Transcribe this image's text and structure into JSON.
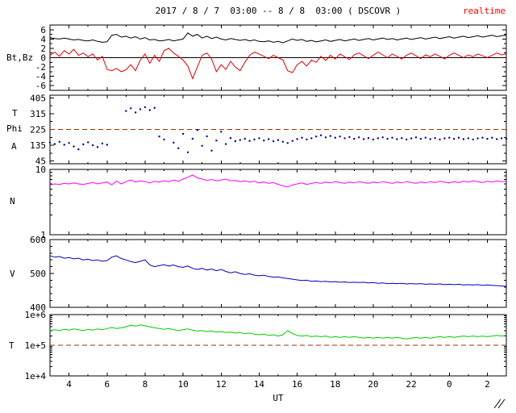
{
  "chart_data": {
    "type": "line",
    "title": "2017 / 8 / 7  03:00 -- 8 / 8  03:00 ( DSCOVR )",
    "annotations": {
      "realtime_label": "realtime",
      "realtime_color": "#ff0000"
    },
    "x_start": 3,
    "x_step": 0.25,
    "x_axis": {
      "label": "UT",
      "start_hour": 3,
      "end_hour": 27,
      "major_ticks": [
        4,
        6,
        8,
        10,
        12,
        14,
        16,
        18,
        20,
        22,
        24,
        26
      ],
      "major_tick_labels": [
        "4",
        "6",
        "8",
        "10",
        "12",
        "14",
        "16",
        "18",
        "20",
        "22",
        "0",
        "2"
      ],
      "minor_ticks": [
        5,
        7,
        9,
        11,
        13,
        15,
        17,
        19,
        21,
        23,
        25
      ]
    },
    "panels": [
      {
        "name": "bt-bz",
        "label": "Bt,Bz",
        "scale": "linear",
        "ylim": [
          -7,
          7
        ],
        "yticks": [
          {
            "v": 6,
            "label": "6"
          },
          {
            "v": 4,
            "label": "4"
          },
          {
            "v": 2,
            "label": "2"
          },
          {
            "v": 0,
            "label": "0"
          },
          {
            "v": -2,
            "label": "-2"
          },
          {
            "v": -4,
            "label": "-4"
          },
          {
            "v": -6,
            "label": "-6"
          }
        ],
        "yminor": [
          5,
          3,
          1,
          -1,
          -3,
          -5
        ],
        "zero_line": 0,
        "series": [
          {
            "name": "Bt",
            "color": "#000000",
            "style": "line",
            "values": [
              4.3,
              4.1,
              4.0,
              4.2,
              4.0,
              3.8,
              3.9,
              3.7,
              3.6,
              3.8,
              3.5,
              3.3,
              3.4,
              4.8,
              5.0,
              4.4,
              4.6,
              4.2,
              4.5,
              4.0,
              4.3,
              3.8,
              3.9,
              3.6,
              3.7,
              3.9,
              3.6,
              3.8,
              4.0,
              5.3,
              4.6,
              5.0,
              4.2,
              4.6,
              4.1,
              4.4,
              4.0,
              3.8,
              4.1,
              3.9,
              3.7,
              3.9,
              3.6,
              3.8,
              3.5,
              3.4,
              3.6,
              3.3,
              3.5,
              3.2,
              3.6,
              4.0,
              3.7,
              3.9,
              3.5,
              3.7,
              3.4,
              3.6,
              3.8,
              3.5,
              3.7,
              3.9,
              3.6,
              3.8,
              4.0,
              3.7,
              3.9,
              4.1,
              3.8,
              4.0,
              4.2,
              3.9,
              4.1,
              3.8,
              4.0,
              4.2,
              3.9,
              4.1,
              4.3,
              4.0,
              4.2,
              4.4,
              4.1,
              4.3,
              4.5,
              4.2,
              4.4,
              4.6,
              4.3,
              4.5,
              4.7,
              4.4,
              4.6,
              4.8,
              4.5,
              4.7,
              4.8
            ]
          },
          {
            "name": "Bz",
            "color": "#dd0000",
            "style": "line",
            "values": [
              0.5,
              1.2,
              0.3,
              1.5,
              0.8,
              1.8,
              0.5,
              1.0,
              0.2,
              0.8,
              -0.5,
              0.3,
              -2.5,
              -2.8,
              -2.3,
              -3.0,
              -2.6,
              -1.5,
              -2.8,
              -0.5,
              0.8,
              -1.2,
              0.5,
              -0.8,
              1.5,
              2.0,
              1.0,
              0.3,
              -0.5,
              -1.8,
              -4.5,
              -2.0,
              0.5,
              1.0,
              -0.3,
              -3.0,
              -1.5,
              -2.5,
              -0.8,
              -2.0,
              -2.8,
              -1.0,
              0.5,
              1.2,
              0.8,
              0.3,
              -0.2,
              0.5,
              0.0,
              -0.5,
              -2.8,
              -3.2,
              -1.5,
              -0.8,
              -1.8,
              -0.5,
              -1.0,
              0.3,
              -0.6,
              0.5,
              -0.3,
              0.8,
              0.2,
              -0.4,
              0.6,
              1.0,
              0.4,
              -0.2,
              0.5,
              1.2,
              0.6,
              0.0,
              0.8,
              0.3,
              -0.3,
              0.5,
              1.0,
              0.4,
              -0.2,
              0.6,
              0.2,
              0.8,
              0.3,
              -0.3,
              0.5,
              1.0,
              0.5,
              0.0,
              0.6,
              0.2,
              0.8,
              0.4,
              0.0,
              0.5,
              1.0,
              0.6,
              0.8
            ]
          }
        ]
      },
      {
        "name": "phi",
        "labels": [
          "T",
          "Phi",
          "A"
        ],
        "scale": "linear",
        "ylim": [
          30,
          420
        ],
        "yticks": [
          {
            "v": 405,
            "label": "405"
          },
          {
            "v": 315,
            "label": "315"
          },
          {
            "v": 225,
            "label": "225"
          },
          {
            "v": 135,
            "label": "135"
          },
          {
            "v": 45,
            "label": "45"
          }
        ],
        "yminor": [
          360,
          270,
          180,
          90
        ],
        "ref_line": {
          "value": 225,
          "color": "#993300"
        },
        "series": [
          {
            "name": "Phi",
            "color": "#000099",
            "style": "scatter",
            "values": [
              150,
              142,
              155,
              138,
              148,
              128,
              112,
              140,
              152,
              135,
              125,
              145,
              138,
              null,
              null,
              null,
              330,
              345,
              322,
              340,
              352,
              335,
              348,
              185,
              168,
              null,
              150,
              118,
              200,
              95,
              172,
              222,
              132,
              186,
              105,
              162,
              212,
              142,
              176,
              158,
              165,
              172,
              160,
              168,
              175,
              162,
              170,
              158,
              165,
              155,
              148,
              160,
              170,
              178,
              168,
              175,
              185,
              192,
              180,
              188,
              178,
              185,
              175,
              182,
              172,
              180,
              170,
              176,
              168,
              175,
              180,
              172,
              178,
              170,
              176,
              168,
              174,
              180,
              172,
              178,
              170,
              176,
              168,
              174,
              178,
              172,
              178,
              170,
              175,
              168,
              174,
              178,
              172,
              178,
              170,
              175,
              172
            ]
          }
        ]
      },
      {
        "name": "n",
        "label": "N",
        "scale": "log",
        "ylim": [
          1,
          10
        ],
        "yticks": [
          {
            "v": 10,
            "label": "10"
          },
          {
            "v": 1,
            "label": "1"
          }
        ],
        "series": [
          {
            "name": "N",
            "color": "#ff00ff",
            "style": "line",
            "values": [
              5.8,
              6.0,
              5.9,
              6.1,
              6.0,
              6.2,
              6.0,
              5.9,
              6.1,
              6.3,
              6.0,
              6.2,
              6.4,
              5.8,
              6.6,
              6.0,
              6.5,
              6.9,
              6.4,
              6.7,
              6.5,
              6.2,
              6.6,
              6.4,
              6.7,
              6.5,
              6.9,
              6.6,
              7.1,
              7.6,
              8.2,
              7.4,
              7.1,
              6.8,
              7.0,
              6.7,
              6.9,
              7.1,
              6.7,
              6.8,
              6.5,
              6.7,
              6.4,
              6.6,
              6.2,
              6.4,
              6.1,
              6.3,
              5.9,
              5.6,
              5.4,
              5.8,
              6.0,
              6.2,
              5.9,
              6.1,
              6.3,
              6.1,
              6.4,
              6.2,
              6.5,
              6.3,
              6.1,
              6.4,
              6.2,
              6.5,
              6.3,
              6.1,
              6.4,
              6.2,
              6.5,
              6.3,
              6.1,
              6.4,
              6.2,
              6.5,
              6.3,
              6.1,
              6.4,
              6.2,
              6.5,
              6.3,
              6.6,
              6.4,
              6.2,
              6.5,
              6.3,
              6.6,
              6.4,
              6.7,
              6.5,
              6.3,
              6.6,
              6.4,
              6.7,
              6.5,
              6.6
            ]
          }
        ]
      },
      {
        "name": "v",
        "label": "V",
        "scale": "linear",
        "ylim": [
          400,
          600
        ],
        "yticks": [
          {
            "v": 600,
            "label": "600"
          },
          {
            "v": 500,
            "label": "500"
          },
          {
            "v": 400,
            "label": "400"
          }
        ],
        "yminor": [
          420,
          440,
          460,
          480,
          520,
          540,
          560,
          580
        ],
        "series": [
          {
            "name": "V",
            "color": "#0000bb",
            "style": "line",
            "values": [
              552,
              548,
              550,
              545,
              547,
              543,
              545,
              540,
              542,
              538,
              540,
              536,
              538,
              548,
              552,
              544,
              540,
              535,
              532,
              536,
              540,
              525,
              520,
              523,
              526,
              522,
              525,
              520,
              518,
              522,
              515,
              512,
              515,
              510,
              513,
              508,
              512,
              506,
              502,
              505,
              500,
              497,
              499,
              495,
              493,
              495,
              491,
              489,
              490,
              487,
              485,
              483,
              481,
              479,
              480,
              477,
              478,
              476,
              477,
              475,
              476,
              474,
              475,
              473,
              474,
              473,
              474,
              472,
              473,
              471,
              472,
              470,
              471,
              470,
              471,
              469,
              470,
              469,
              470,
              468,
              469,
              468,
              469,
              467,
              468,
              467,
              468,
              466,
              467,
              466,
              467,
              465,
              466,
              465,
              464,
              463,
              462
            ]
          }
        ]
      },
      {
        "name": "t",
        "label": "T",
        "scale": "log",
        "ylim": [
          10000,
          1000000
        ],
        "yticks": [
          {
            "v": 1000000,
            "label": "1e+6"
          },
          {
            "v": 100000,
            "label": "1e+5"
          },
          {
            "v": 10000,
            "label": "1e+4"
          }
        ],
        "ref_line": {
          "value": 100000,
          "color": "#993300"
        },
        "series": [
          {
            "name": "T",
            "color": "#00cc00",
            "style": "line",
            "value_scale": 100000,
            "values": [
              3.0,
              3.2,
              3.0,
              3.3,
              3.1,
              3.4,
              3.2,
              3.0,
              3.3,
              3.1,
              3.4,
              3.2,
              3.5,
              3.8,
              3.5,
              3.7,
              4.0,
              4.5,
              4.2,
              4.6,
              4.3,
              4.0,
              3.7,
              3.5,
              3.3,
              3.5,
              3.2,
              3.0,
              3.2,
              3.4,
              3.1,
              2.9,
              3.0,
              2.8,
              2.9,
              2.7,
              2.8,
              2.6,
              2.7,
              2.5,
              2.6,
              2.4,
              2.5,
              2.3,
              2.2,
              2.3,
              2.1,
              2.2,
              2.0,
              2.2,
              3.0,
              2.4,
              2.1,
              2.0,
              2.1,
              1.9,
              2.0,
              1.9,
              2.0,
              1.8,
              1.9,
              1.8,
              1.9,
              1.8,
              1.9,
              1.8,
              1.7,
              1.8,
              1.7,
              1.8,
              1.7,
              1.8,
              1.7,
              1.8,
              1.7,
              1.6,
              1.7,
              1.8,
              1.7,
              1.8,
              1.7,
              1.8,
              1.9,
              1.8,
              1.9,
              1.8,
              1.9,
              2.0,
              1.9,
              2.0,
              1.9,
              2.0,
              1.9,
              2.0,
              2.1,
              2.0,
              2.1
            ]
          }
        ]
      }
    ]
  }
}
